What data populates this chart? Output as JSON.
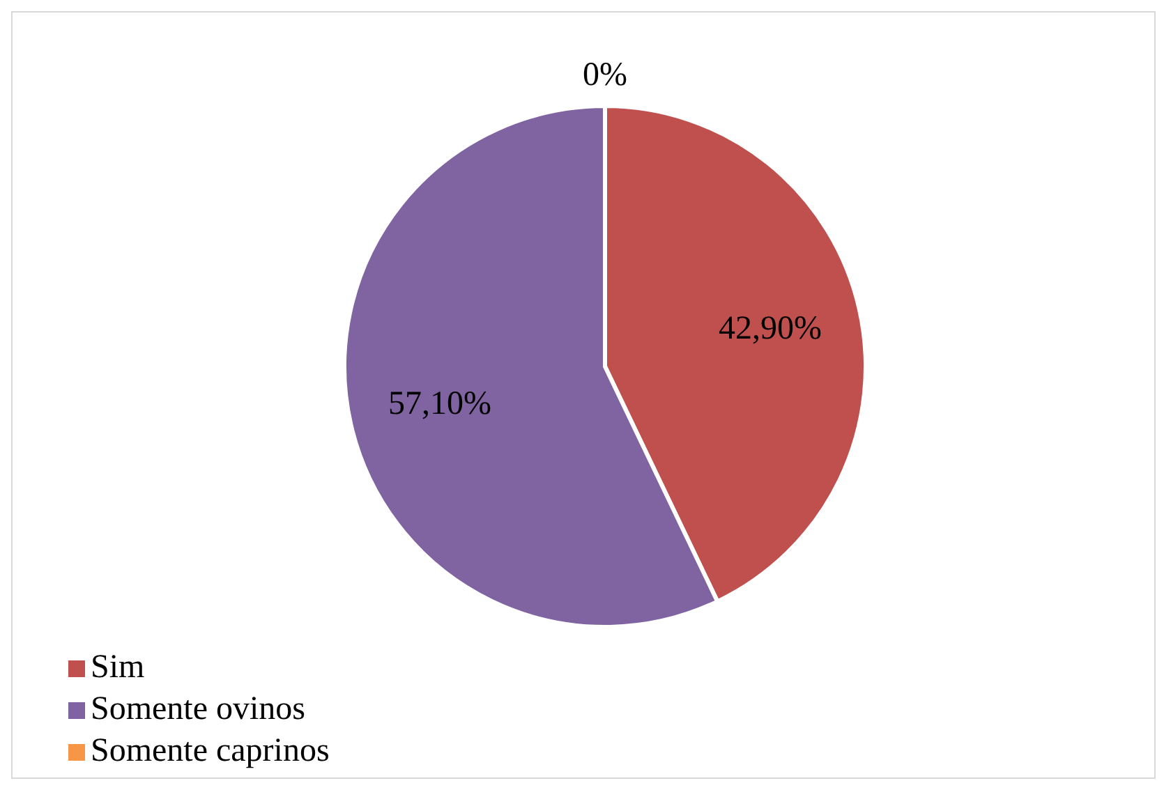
{
  "chart_data": {
    "type": "pie",
    "categories": [
      "Sim",
      "Somente ovinos",
      "Somente caprinos"
    ],
    "values": [
      42.9,
      57.1,
      0
    ],
    "colors": [
      "#c0504d",
      "#8064a2",
      "#f79646"
    ],
    "value_labels": [
      "42,90%",
      "57,10%",
      "0%"
    ],
    "legend": "bottom left"
  }
}
